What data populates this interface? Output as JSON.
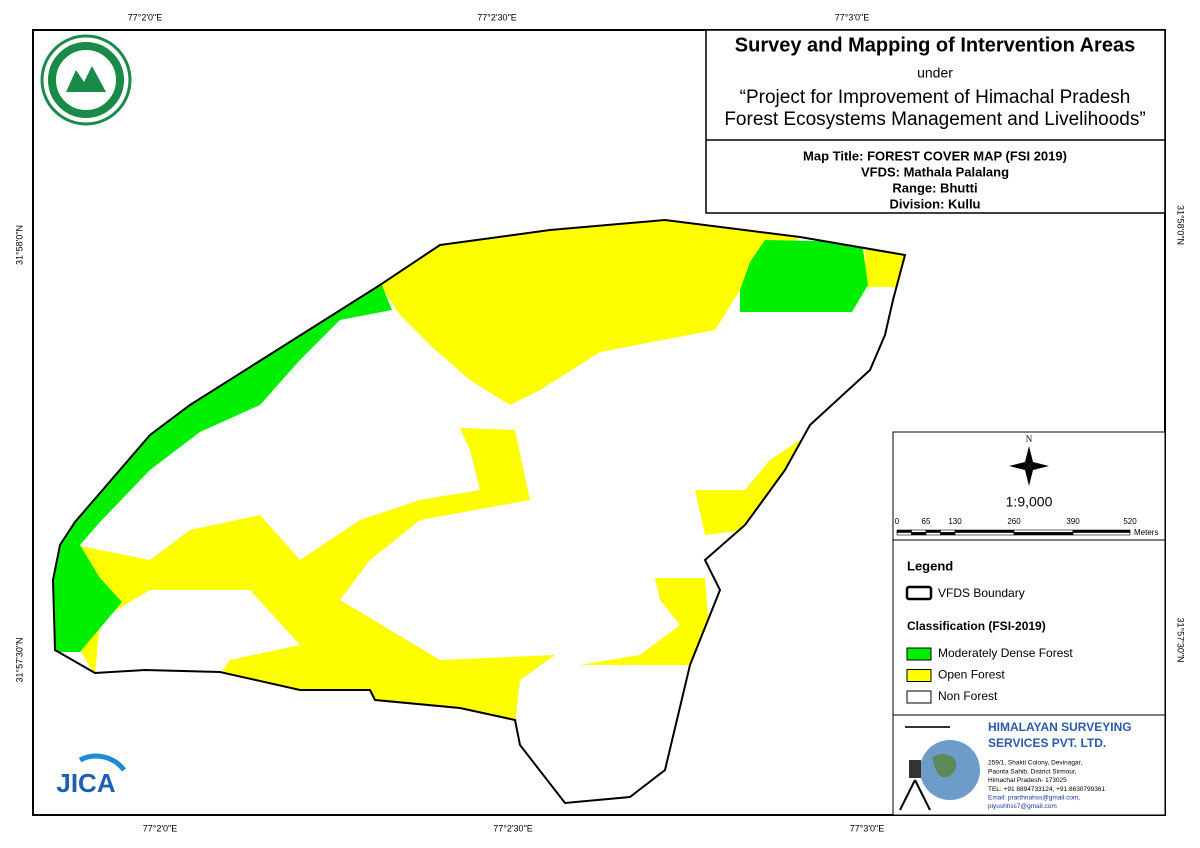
{
  "coordinates": {
    "top": [
      "77°2'0\"E",
      "77°2'30\"E",
      "77°3'0\"E"
    ],
    "bottom": [
      "77°2'0\"E",
      "77°2'30\"E",
      "77°3'0\"E"
    ],
    "left": [
      "31°58'0\"N",
      "31°57'30\"N"
    ],
    "right": [
      "31°58'0\"N",
      "31°57'30\"N"
    ]
  },
  "title_box": {
    "title": "Survey and Mapping of Intervention Areas",
    "under": "under",
    "project": [
      "“Project for Improvement of Himachal Pradesh",
      "Forest Ecosystems Management and Livelihoods”"
    ]
  },
  "map_info": [
    "Map Title: FOREST COVER MAP (FSI 2019)",
    "VFDS: Mathala Palalang",
    "Range: Bhutti",
    "Division: Kullu"
  ],
  "north": "N",
  "scale": "1:9,000",
  "scale_bar": {
    "labels": [
      "0",
      "65",
      "130",
      "260",
      "390",
      "520"
    ],
    "unit": "Meters"
  },
  "legend": {
    "title": "Legend",
    "boundary": "VFDS Boundary",
    "classification_title": "Classification (FSI-2019)",
    "classes": [
      {
        "label": "Moderately Dense Forest",
        "color": "#00ee00"
      },
      {
        "label": "Open Forest",
        "color": "#ffff00"
      },
      {
        "label": "Non Forest",
        "color": "#ffffff"
      }
    ]
  },
  "company": {
    "name": [
      "HIMALAYAN SURVEYING",
      "SERVICES PVT. LTD."
    ],
    "address": [
      "259/1, Shakti Colony, Devinagar,",
      "Paonta Sahib, District Sirmour,",
      "Himachal Pradesh- 173025",
      "TEL: +91 8894733124, +91 8630799361",
      "Email: prarthnahss@gmail.com,",
      "piyushhss7@gmail.com"
    ]
  },
  "jica": "JICA"
}
